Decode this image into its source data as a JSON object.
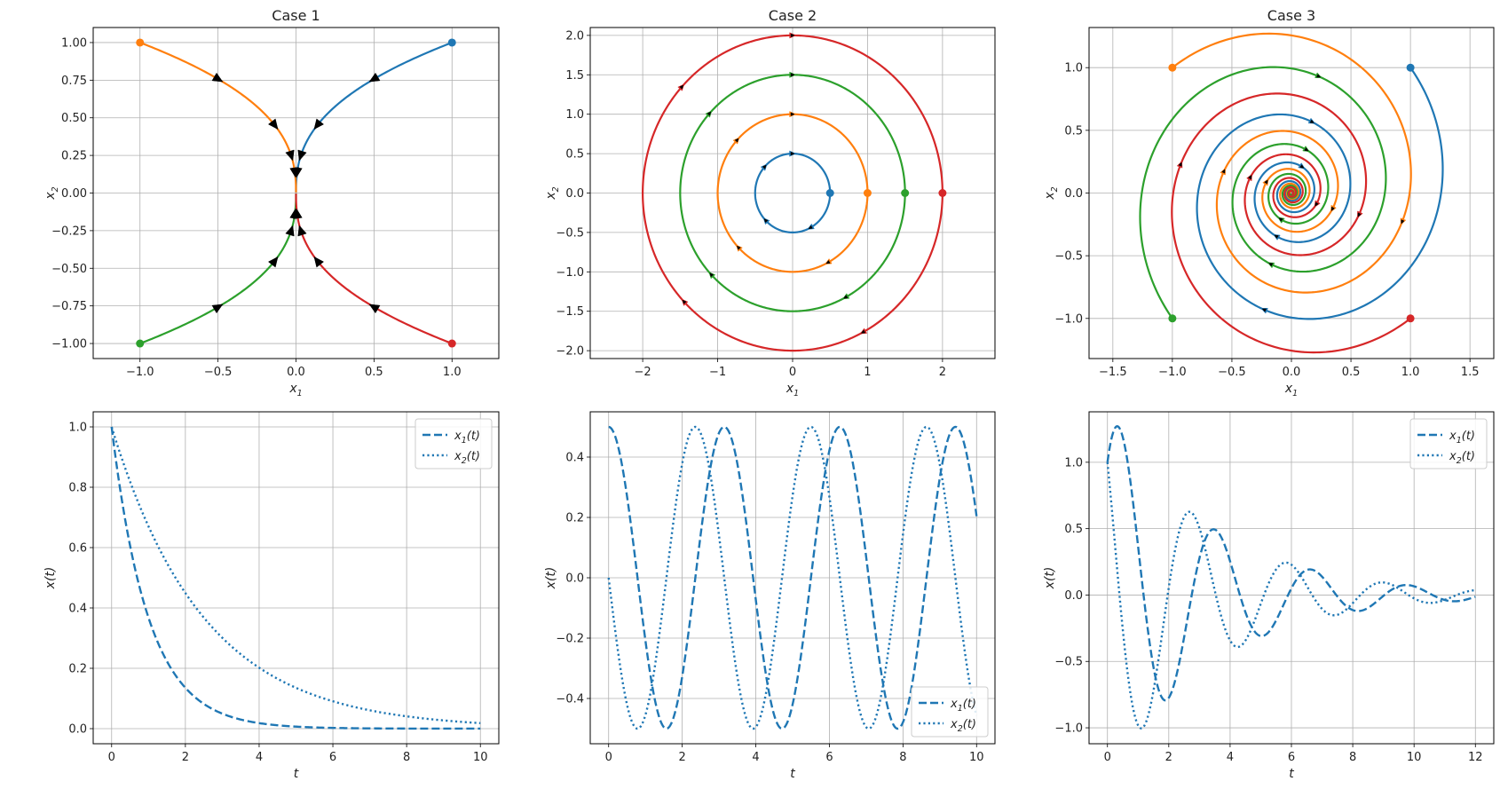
{
  "figure": {
    "background": "#ffffff"
  },
  "colors": {
    "blue": "#1f77b4",
    "orange": "#ff7f0e",
    "green": "#2ca02c",
    "red": "#d62728",
    "grid": "#b0b0b0",
    "arrow": "#000000"
  },
  "chart_data": [
    {
      "type": "line",
      "subtype": "phase-portrait",
      "title": "Case 1",
      "xlabel": "x1",
      "ylabel": "x2",
      "xlim": [
        -1.3,
        1.3
      ],
      "ylim": [
        -1.1,
        1.1
      ],
      "xticks": [
        -1.0,
        -0.5,
        0.0,
        0.5,
        1.0
      ],
      "yticks": [
        -1.0,
        -0.75,
        -0.5,
        -0.25,
        0.0,
        0.25,
        0.5,
        0.75,
        1.0
      ],
      "grid": true,
      "system": {
        "kind": "decay",
        "a": 1.0,
        "b": 0.4
      },
      "initial_conditions": [
        [
          1,
          1
        ],
        [
          -1,
          1
        ],
        [
          -1,
          -1
        ],
        [
          1,
          -1
        ]
      ],
      "series_colors": [
        "#1f77b4",
        "#ff7f0e",
        "#2ca02c",
        "#d62728"
      ],
      "arrow_times": [
        0.7,
        2.0,
        3.5,
        5.0
      ]
    },
    {
      "type": "line",
      "subtype": "phase-portrait",
      "title": "Case 2",
      "xlabel": "x1",
      "ylabel": "x2",
      "xlim": [
        -2.7,
        2.7
      ],
      "ylim": [
        -2.1,
        2.1
      ],
      "xticks": [
        -2,
        -1,
        0,
        1,
        2
      ],
      "yticks": [
        -2.0,
        -1.5,
        -1.0,
        -0.5,
        0.0,
        0.5,
        1.0,
        1.5,
        2.0
      ],
      "grid": true,
      "system": {
        "kind": "center"
      },
      "initial_conditions": [
        [
          0.5,
          0
        ],
        [
          1.0,
          0
        ],
        [
          1.5,
          0
        ],
        [
          2.0,
          0
        ]
      ],
      "series_colors": [
        "#1f77b4",
        "#ff7f0e",
        "#2ca02c",
        "#d62728"
      ],
      "arrow_angles": [
        1.57,
        2.4,
        3.9,
        5.2
      ]
    },
    {
      "type": "line",
      "subtype": "phase-portrait",
      "title": "Case 3",
      "xlabel": "x1",
      "ylabel": "x2",
      "xlim": [
        -1.7,
        1.7
      ],
      "ylim": [
        -1.32,
        1.32
      ],
      "xticks": [
        -1.5,
        -1.0,
        -0.5,
        0.0,
        0.5,
        1.0,
        1.5
      ],
      "yticks": [
        -1.0,
        -0.5,
        0.0,
        0.5,
        1.0
      ],
      "grid": true,
      "system": {
        "kind": "spiral",
        "sigma": -0.3,
        "omega": 2.0
      },
      "initial_conditions": [
        [
          1,
          1
        ],
        [
          -1,
          1
        ],
        [
          -1,
          -1
        ],
        [
          1,
          -1
        ]
      ],
      "series_colors": [
        "#1f77b4",
        "#ff7f0e",
        "#2ca02c",
        "#d62728"
      ],
      "arrow_times": [
        1.3,
        2.9,
        4.5,
        6.1
      ]
    },
    {
      "type": "line",
      "title": "",
      "xlabel": "t",
      "ylabel": "x(t)",
      "xlim": [
        -0.5,
        10.5
      ],
      "ylim": [
        -0.05,
        1.05
      ],
      "xticks": [
        0,
        2,
        4,
        6,
        8,
        10
      ],
      "yticks": [
        0.0,
        0.2,
        0.4,
        0.6,
        0.8,
        1.0
      ],
      "grid": true,
      "legend_position": "upper right",
      "t_range": [
        0,
        10
      ],
      "series": [
        {
          "name": "x1(t)",
          "style": "dashed",
          "color": "#1f77b4",
          "expr": "exp(-t)"
        },
        {
          "name": "x2(t)",
          "style": "dotted",
          "color": "#1f77b4",
          "expr": "exp(-0.4*t)"
        }
      ]
    },
    {
      "type": "line",
      "title": "",
      "xlabel": "t",
      "ylabel": "x(t)",
      "xlim": [
        -0.5,
        10.5
      ],
      "ylim": [
        -0.55,
        0.55
      ],
      "xticks": [
        0,
        2,
        4,
        6,
        8,
        10
      ],
      "yticks": [
        -0.4,
        -0.2,
        0.0,
        0.2,
        0.4
      ],
      "grid": true,
      "legend_position": "lower right",
      "t_range": [
        0,
        10
      ],
      "series": [
        {
          "name": "x1(t)",
          "style": "dashed",
          "color": "#1f77b4",
          "expr": "0.5*cos(2t)"
        },
        {
          "name": "x2(t)",
          "style": "dotted",
          "color": "#1f77b4",
          "expr": "-0.5*sin(2t)"
        }
      ]
    },
    {
      "type": "line",
      "title": "",
      "xlabel": "t",
      "ylabel": "x(t)",
      "xlim": [
        -0.6,
        12.6
      ],
      "ylim": [
        -1.12,
        1.38
      ],
      "xticks": [
        0,
        2,
        4,
        6,
        8,
        10,
        12
      ],
      "yticks": [
        -1.0,
        -0.5,
        0.0,
        0.5,
        1.0
      ],
      "grid": true,
      "legend_position": "upper right",
      "t_range": [
        0,
        12
      ],
      "series": [
        {
          "name": "x1(t)",
          "style": "dashed",
          "color": "#1f77b4",
          "expr": "exp(-0.3t)(cos2t+sin2t)"
        },
        {
          "name": "x2(t)",
          "style": "dotted",
          "color": "#1f77b4",
          "expr": "exp(-0.3t)(cos2t-sin2t)"
        }
      ]
    }
  ]
}
